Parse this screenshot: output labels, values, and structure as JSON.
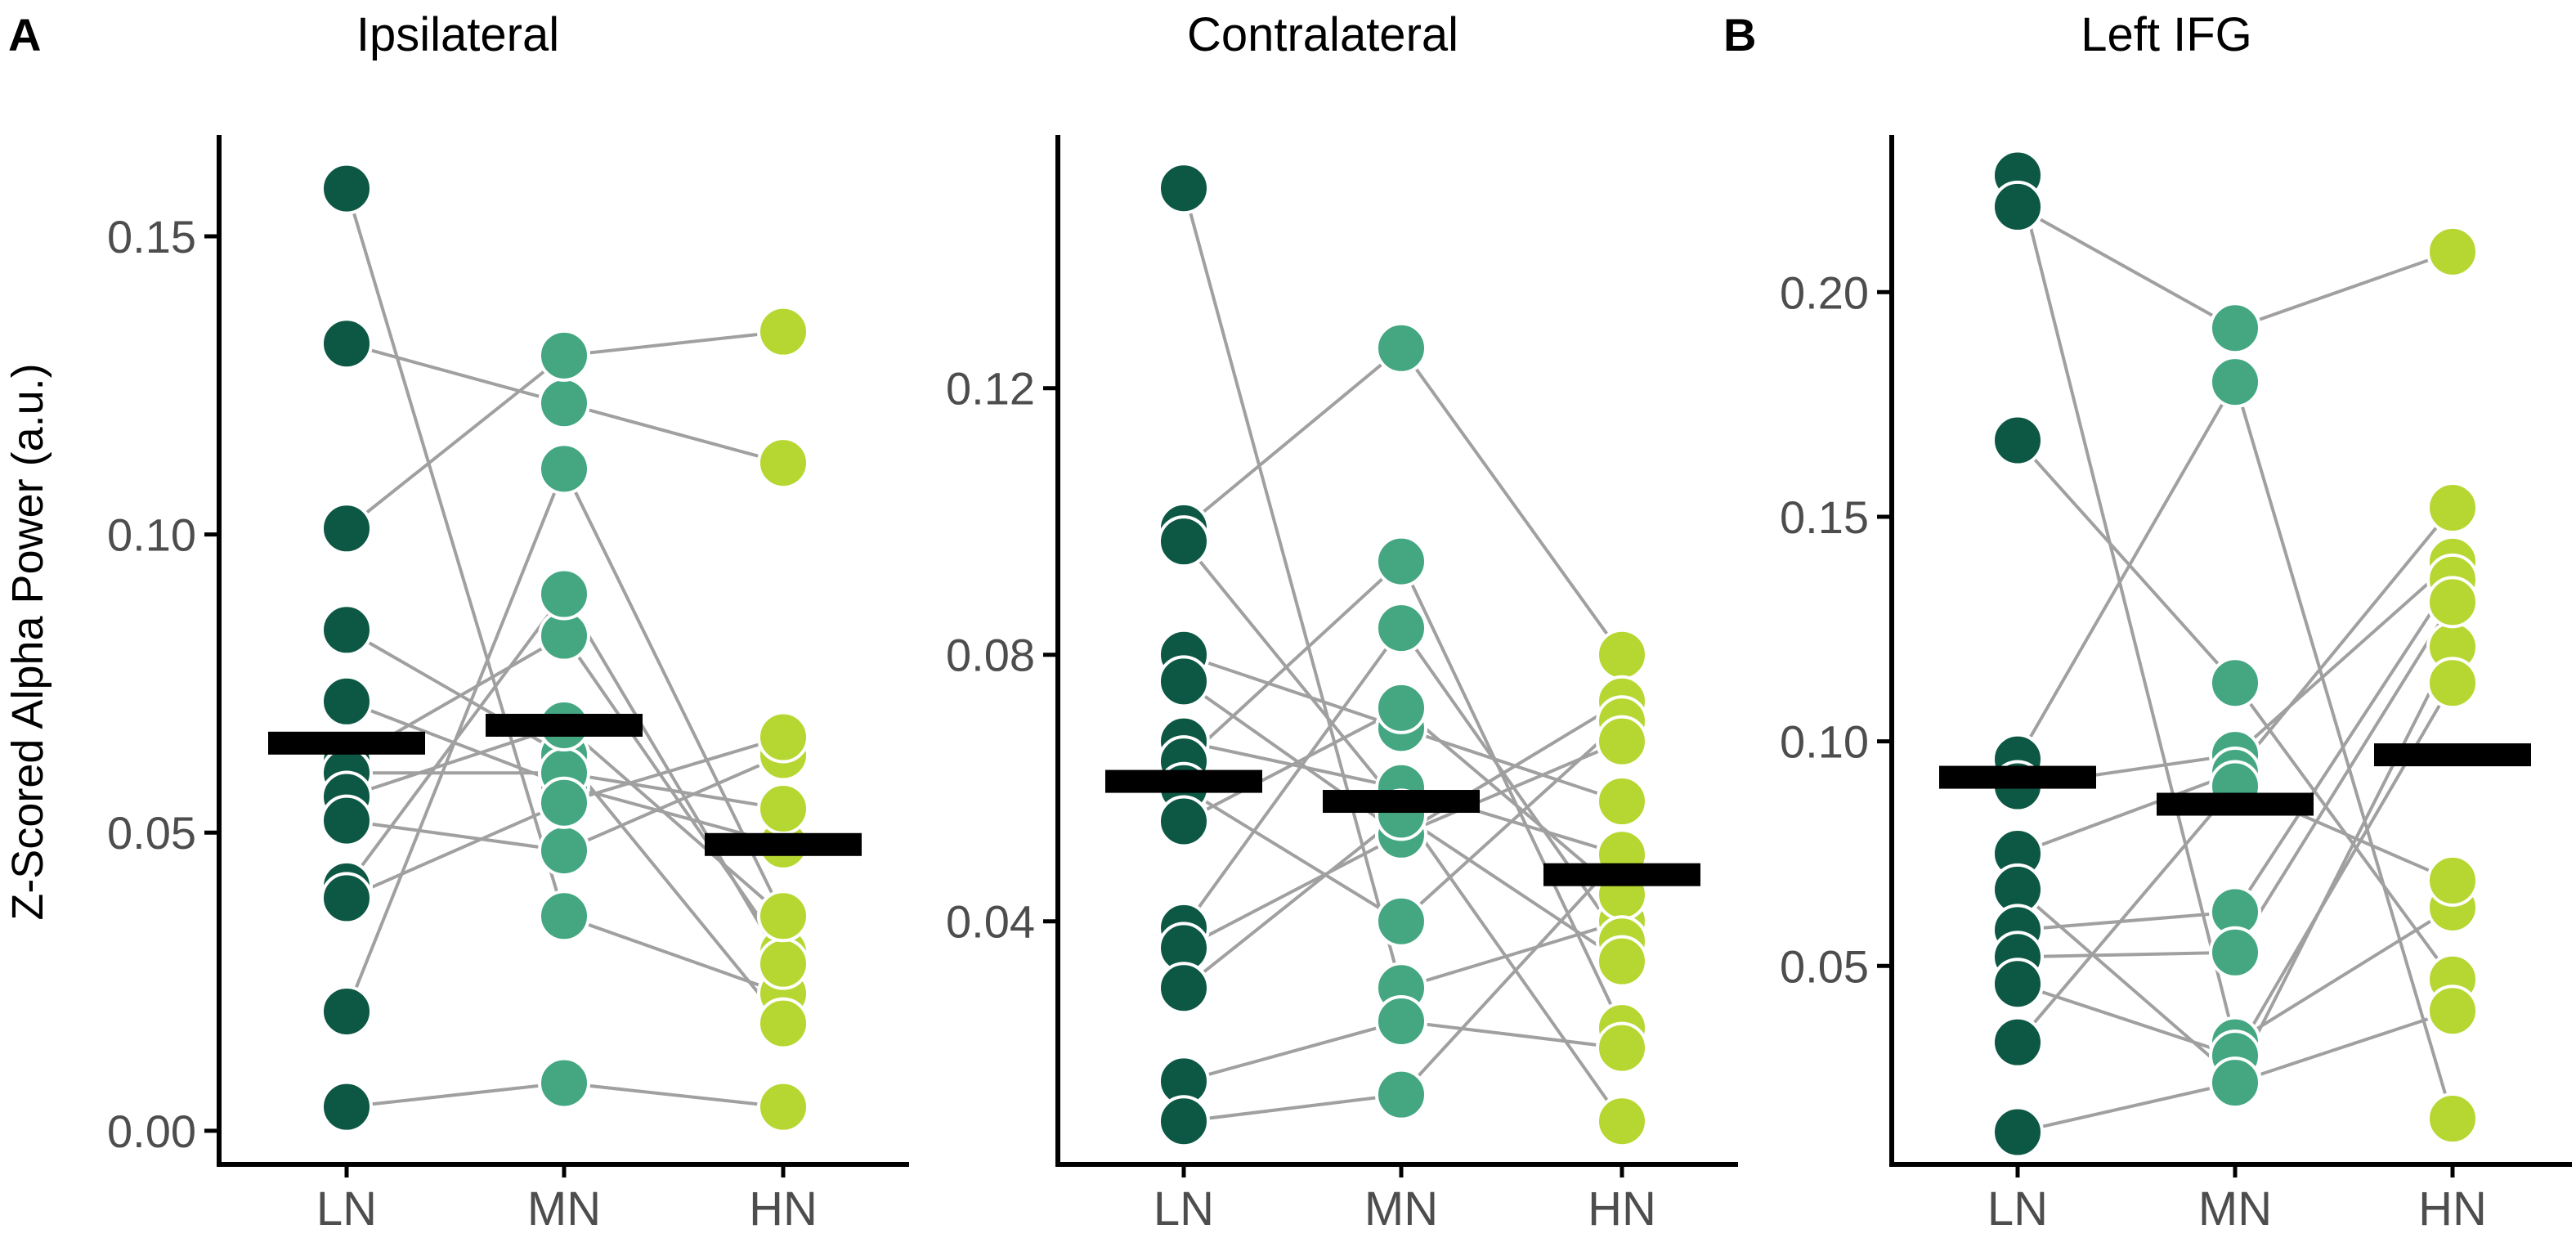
{
  "figure": {
    "panel_labels": [
      "A",
      "B"
    ],
    "ylabel": "Z-Scored Alpha Power (a.u.)"
  },
  "colors": {
    "LN": "#0d5745",
    "MN": "#44a782",
    "HN": "#b6d731",
    "line": "#a0a0a0",
    "mean": "#000000",
    "axis": "#000000",
    "tick_text": "#4d4d4d"
  },
  "chart_data": [
    {
      "type": "scatter",
      "title": "Ipsilateral",
      "xlabel": "",
      "ylabel": "Z-Scored Alpha Power (a.u.)",
      "categories": [
        "LN",
        "MN",
        "HN"
      ],
      "ylim": [
        -0.004,
        0.167
      ],
      "yticks": [
        0.0,
        0.05,
        0.1,
        0.15
      ],
      "ytick_labels": [
        "0.00",
        "0.05",
        "0.10",
        "0.15"
      ],
      "means": [
        0.065,
        0.068,
        0.048
      ],
      "subjects": [
        [
          0.158,
          0.036,
          0.023
        ],
        [
          0.132,
          0.122,
          0.112
        ],
        [
          0.101,
          0.13,
          0.134
        ],
        [
          0.084,
          0.063,
          0.018
        ],
        [
          0.072,
          0.058,
          0.048
        ],
        [
          0.062,
          0.083,
          0.03
        ],
        [
          0.06,
          0.06,
          0.054
        ],
        [
          0.056,
          0.068,
          0.036
        ],
        [
          0.052,
          0.047,
          0.063
        ],
        [
          0.041,
          0.09,
          0.028
        ],
        [
          0.039,
          0.055,
          0.066
        ],
        [
          0.02,
          0.111,
          0.036
        ],
        [
          0.004,
          0.008,
          0.004
        ]
      ]
    },
    {
      "type": "scatter",
      "title": "Contralateral",
      "xlabel": "",
      "ylabel": "",
      "categories": [
        "LN",
        "MN",
        "HN"
      ],
      "ylim": [
        0.005,
        0.158
      ],
      "yticks": [
        0.04,
        0.08,
        0.12
      ],
      "ytick_labels": [
        "0.04",
        "0.08",
        "0.12"
      ],
      "means": [
        0.061,
        0.058,
        0.047
      ],
      "subjects": [
        [
          0.15,
          0.03,
          0.04
        ],
        [
          0.099,
          0.126,
          0.08
        ],
        [
          0.097,
          0.057,
          0.01
        ],
        [
          0.08,
          0.069,
          0.058
        ],
        [
          0.076,
          0.053,
          0.073
        ],
        [
          0.067,
          0.06,
          0.05
        ],
        [
          0.064,
          0.094,
          0.024
        ],
        [
          0.06,
          0.04,
          0.07
        ],
        [
          0.055,
          0.072,
          0.044
        ],
        [
          0.039,
          0.084,
          0.037
        ],
        [
          0.036,
          0.053,
          0.067
        ],
        [
          0.03,
          0.056,
          0.034
        ],
        [
          0.016,
          0.025,
          0.021
        ],
        [
          0.01,
          0.014,
          0.05
        ]
      ]
    },
    {
      "type": "scatter",
      "title": "Left IFG",
      "xlabel": "",
      "ylabel": "",
      "categories": [
        "LN",
        "MN",
        "HN"
      ],
      "ylim": [
        0.008,
        0.235
      ],
      "yticks": [
        0.05,
        0.1,
        0.15,
        0.2
      ],
      "ytick_labels": [
        "0.05",
        "0.10",
        "0.15",
        "0.20"
      ],
      "means": [
        0.092,
        0.086,
        0.097
      ],
      "subjects": [
        [
          0.226,
          0.033,
          0.063
        ],
        [
          0.219,
          0.192,
          0.209
        ],
        [
          0.167,
          0.113,
          0.047
        ],
        [
          0.096,
          0.18,
          0.016
        ],
        [
          0.09,
          0.097,
          0.14
        ],
        [
          0.075,
          0.093,
          0.152
        ],
        [
          0.067,
          0.025,
          0.121
        ],
        [
          0.058,
          0.062,
          0.136
        ],
        [
          0.052,
          0.053,
          0.131
        ],
        [
          0.046,
          0.03,
          0.113
        ],
        [
          0.033,
          0.09,
          0.069
        ],
        [
          0.013,
          0.024,
          0.04
        ]
      ]
    }
  ]
}
